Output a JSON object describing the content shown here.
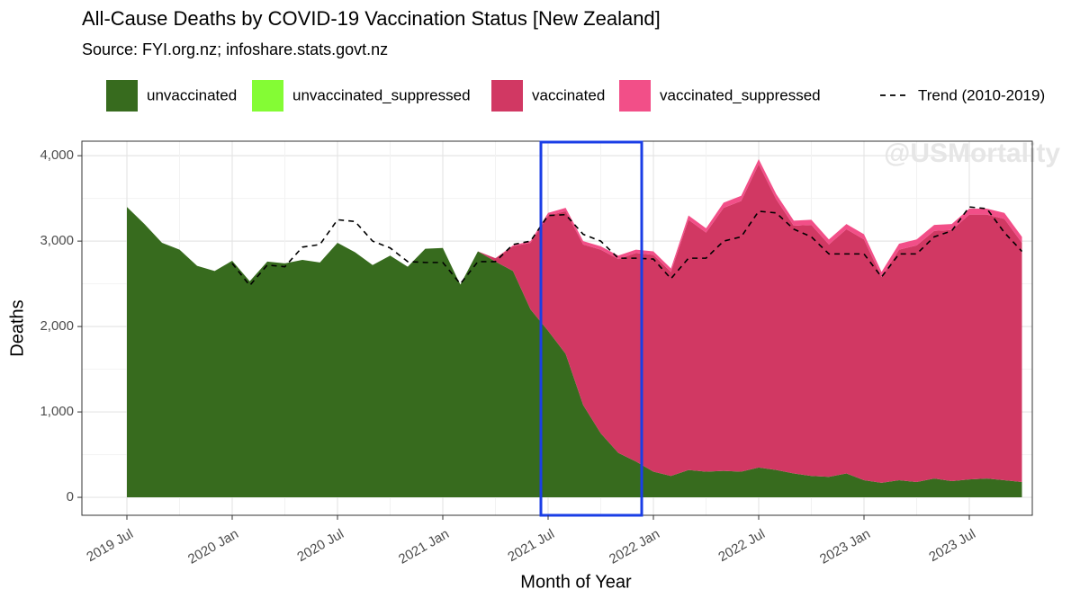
{
  "chart_data": {
    "type": "stacked_area",
    "title": "All-Cause Deaths by COVID-19 Vaccination Status [New Zealand]",
    "subtitle": "Source: FYI.org.nz; infoshare.stats.govt.nz",
    "watermark": "@USMortality",
    "x_label": "Month of Year",
    "y_label": "Deaths",
    "x": [
      "2019-07",
      "2019-08",
      "2019-09",
      "2019-10",
      "2019-11",
      "2019-12",
      "2020-01",
      "2020-02",
      "2020-03",
      "2020-04",
      "2020-05",
      "2020-06",
      "2020-07",
      "2020-08",
      "2020-09",
      "2020-10",
      "2020-11",
      "2020-12",
      "2021-01",
      "2021-02",
      "2021-03",
      "2021-04",
      "2021-05",
      "2021-06",
      "2021-07",
      "2021-08",
      "2021-09",
      "2021-10",
      "2021-11",
      "2021-12",
      "2022-01",
      "2022-02",
      "2022-03",
      "2022-04",
      "2022-05",
      "2022-06",
      "2022-07",
      "2022-08",
      "2022-09",
      "2022-10",
      "2022-11",
      "2022-12",
      "2023-01",
      "2023-02",
      "2023-03",
      "2023-04",
      "2023-05",
      "2023-06",
      "2023-07",
      "2023-08",
      "2023-09",
      "2023-10"
    ],
    "series": [
      {
        "name": "unvaccinated",
        "color": "#376b1e",
        "values": [
          3400,
          3200,
          2980,
          2900,
          2710,
          2650,
          2770,
          2530,
          2760,
          2740,
          2780,
          2750,
          2980,
          2870,
          2720,
          2830,
          2700,
          2910,
          2920,
          2490,
          2880,
          2760,
          2650,
          2200,
          1950,
          1680,
          1080,
          750,
          520,
          420,
          300,
          250,
          320,
          300,
          310,
          300,
          350,
          320,
          280,
          250,
          240,
          280,
          200,
          170,
          200,
          180,
          220,
          190,
          210,
          220,
          200,
          180
        ]
      },
      {
        "name": "unvaccinated_suppressed",
        "color": "#84fc34",
        "values": [
          0,
          0,
          0,
          0,
          0,
          0,
          0,
          0,
          0,
          0,
          0,
          0,
          0,
          0,
          0,
          0,
          0,
          0,
          0,
          0,
          0,
          0,
          0,
          0,
          0,
          0,
          0,
          0,
          0,
          0,
          0,
          0,
          0,
          0,
          0,
          0,
          0,
          0,
          0,
          0,
          0,
          0,
          0,
          0,
          0,
          0,
          0,
          0,
          0,
          0,
          0,
          0
        ]
      },
      {
        "name": "vaccinated",
        "color": "#d13863",
        "values": [
          0,
          0,
          0,
          0,
          0,
          0,
          0,
          0,
          0,
          0,
          0,
          0,
          0,
          0,
          0,
          0,
          0,
          0,
          0,
          0,
          0,
          40,
          290,
          780,
          1350,
          1670,
          1880,
          2150,
          2270,
          2440,
          2540,
          2390,
          2930,
          2800,
          3080,
          3170,
          3550,
          3170,
          2900,
          2940,
          2720,
          2860,
          2820,
          2410,
          2700,
          2770,
          2900,
          2940,
          3100,
          3090,
          3060,
          2800
        ]
      },
      {
        "name": "vaccinated_suppressed",
        "color": "#f24f88",
        "values": [
          0,
          0,
          0,
          0,
          0,
          0,
          0,
          0,
          0,
          0,
          0,
          0,
          0,
          0,
          0,
          0,
          0,
          0,
          0,
          0,
          0,
          0,
          10,
          20,
          30,
          40,
          40,
          40,
          40,
          40,
          40,
          40,
          50,
          50,
          60,
          60,
          60,
          60,
          60,
          60,
          60,
          60,
          60,
          60,
          70,
          70,
          70,
          70,
          70,
          70,
          70,
          70
        ]
      }
    ],
    "trend": {
      "name": "Trend (2010-2019)",
      "color": "#000000",
      "values": [
        null,
        null,
        null,
        null,
        null,
        null,
        2740,
        2480,
        2720,
        2700,
        2930,
        2960,
        3250,
        3230,
        3000,
        2920,
        2760,
        2750,
        2750,
        2500,
        2760,
        2760,
        2960,
        3000,
        3300,
        3310,
        3080,
        3000,
        2800,
        2800,
        2790,
        2560,
        2800,
        2800,
        3000,
        3050,
        3350,
        3330,
        3140,
        3050,
        2850,
        2850,
        2850,
        2580,
        2850,
        2850,
        3050,
        3120,
        3400,
        3380,
        3100,
        2880
      ]
    },
    "xticks": [
      {
        "value": "2019-07",
        "label": "2019 Jul"
      },
      {
        "value": "2020-01",
        "label": "2020 Jan"
      },
      {
        "value": "2020-07",
        "label": "2020 Jul"
      },
      {
        "value": "2021-01",
        "label": "2021 Jan"
      },
      {
        "value": "2021-07",
        "label": "2021 Jul"
      },
      {
        "value": "2022-01",
        "label": "2022 Jan"
      },
      {
        "value": "2022-07",
        "label": "2022 Jul"
      },
      {
        "value": "2023-01",
        "label": "2023 Jan"
      },
      {
        "value": "2023-07",
        "label": "2023 Jul"
      }
    ],
    "ylim": [
      -210,
      4170
    ],
    "yticks": [
      0,
      {
        "value": 1000,
        "label": "1,000"
      },
      {
        "value": 2000,
        "label": "2,000"
      },
      {
        "value": 3000,
        "label": "3,000"
      },
      {
        "value": 4000,
        "label": "4,000"
      }
    ],
    "grid": true,
    "legend": "top"
  }
}
